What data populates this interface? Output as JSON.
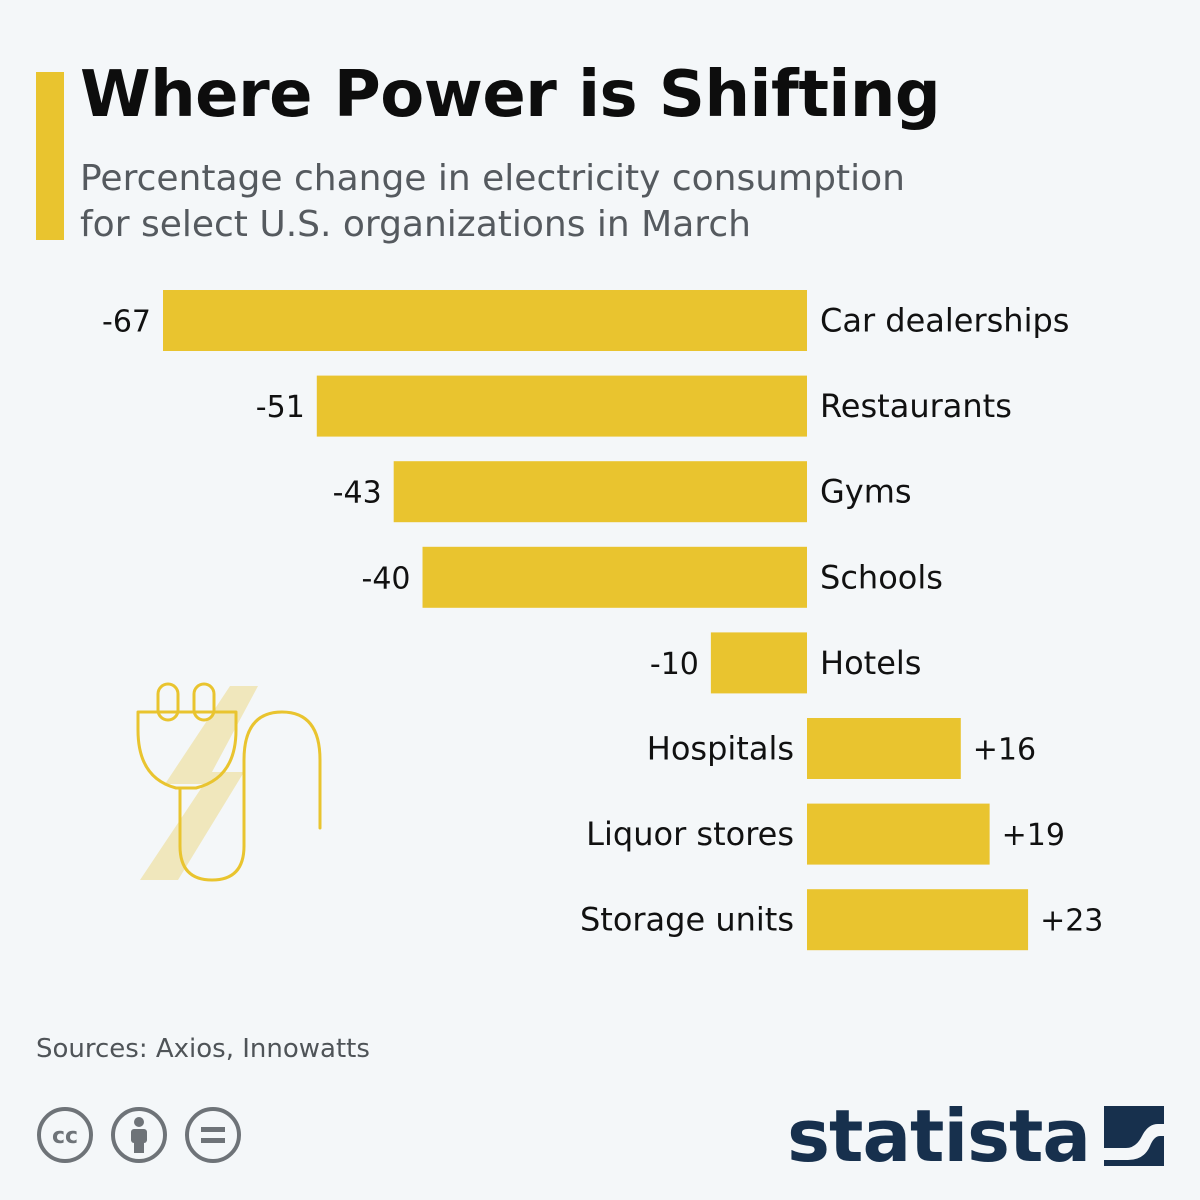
{
  "header": {
    "title": "Where Power is Shifting",
    "subtitle_line1": "Percentage change in electricity consumption",
    "subtitle_line2": "for select U.S. organizations in March"
  },
  "chart_data": {
    "type": "bar",
    "orientation": "horizontal",
    "title": "Where Power is Shifting",
    "subtitle": "Percentage change in electricity consumption for select U.S. organizations in March",
    "unit": "%",
    "categories": [
      "Car dealerships",
      "Restaurants",
      "Gyms",
      "Schools",
      "Hotels",
      "Hospitals",
      "Liquor stores",
      "Storage units"
    ],
    "values": [
      -67,
      -51,
      -43,
      -40,
      -10,
      16,
      19,
      23
    ],
    "value_labels": [
      "-67",
      "-51",
      "-43",
      "-40",
      "-10",
      "+16",
      "+19",
      "+23"
    ],
    "xlim": [
      -67,
      23
    ],
    "grid": false,
    "legend": "none"
  },
  "footer": {
    "source": "Sources: Axios, Innowatts",
    "brand": "statista"
  },
  "colors": {
    "bar": "#e9c42f",
    "background": "#f4f7f9",
    "title": "#0d0d0d",
    "subtitle": "#555a5f",
    "brand": "#17304d",
    "license_icon": "#6e7378"
  },
  "icons": {
    "illustration": "plug-lightning-icon",
    "license": [
      "cc-icon",
      "attribution-icon",
      "no-derivatives-icon"
    ],
    "brand_logo": "statista-logo-icon"
  }
}
